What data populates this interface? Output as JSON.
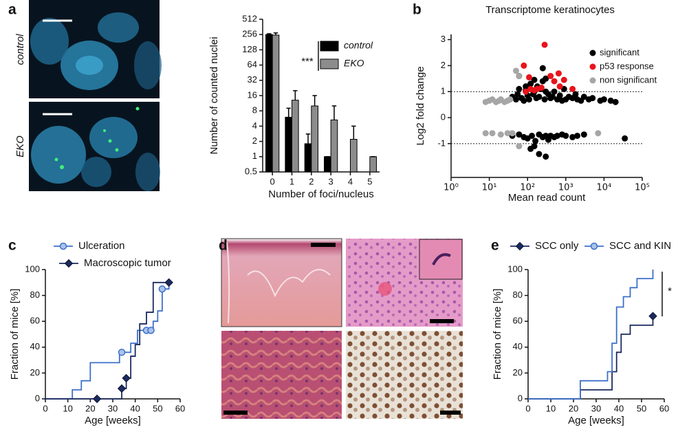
{
  "panels": [
    "a",
    "b",
    "c",
    "d",
    "e"
  ],
  "image_labels": [
    "control",
    "EKO"
  ],
  "chart_data": [
    {
      "type": "bar",
      "xlabel": "Number of foci/nucleus",
      "ylabel": "Number of counted nuclei",
      "categories": [
        "0",
        "1",
        "2",
        "3",
        "4",
        "5"
      ],
      "yscale": "log",
      "ylim": [
        0.5,
        512
      ],
      "yticks": [
        0.5,
        1,
        2,
        4,
        8,
        16,
        32,
        64,
        128,
        256,
        512
      ],
      "annotation": "***",
      "series": [
        {
          "name": "control",
          "color": "#000000",
          "values": [
            256,
            6,
            1.8,
            1,
            null,
            null
          ],
          "errors": [
            10,
            3,
            1,
            0,
            null,
            null
          ]
        },
        {
          "name": "EKO",
          "color": "#8c8c8c",
          "values": [
            250,
            13,
            10,
            5.3,
            2.2,
            1
          ],
          "errors": [
            25,
            7,
            6,
            4.7,
            1.8,
            0
          ]
        }
      ]
    },
    {
      "type": "scatter",
      "title": "Transcriptome keratinocytes",
      "xlabel": "Mean read count",
      "ylabel": "Log2 fold change",
      "xscale": "log",
      "xlim": [
        1,
        100000
      ],
      "xticks": [
        {
          "value": 1,
          "label": "10⁰"
        },
        {
          "value": 10,
          "label": "10¹"
        },
        {
          "value": 100,
          "label": "10²"
        },
        {
          "value": 1000,
          "label": "10³"
        },
        {
          "value": 10000,
          "label": "10⁴"
        },
        {
          "value": 100000,
          "label": "10⁵"
        }
      ],
      "ylim": [
        -2.3,
        3.2
      ],
      "yticks": [
        -1,
        0,
        1,
        2,
        3
      ],
      "hlines": [
        1,
        -1
      ],
      "series": [
        {
          "name": "significant",
          "color": "#000000",
          "x": [
            40,
            50,
            55,
            60,
            70,
            80,
            90,
            100,
            110,
            120,
            140,
            150,
            170,
            200,
            220,
            250,
            280,
            300,
            350,
            400,
            450,
            500,
            600,
            700,
            800,
            900,
            1000,
            1200,
            1500,
            1800,
            2000,
            2500,
            3000,
            4000,
            5000,
            8000,
            10000,
            15000,
            20000,
            60,
            120,
            180,
            250,
            300,
            150,
            90,
            40,
            60,
            80,
            100,
            130,
            160,
            200,
            250,
            300,
            350,
            400,
            500,
            600,
            800,
            1000,
            1500,
            2000,
            3000,
            35000,
            200,
            300,
            150,
            120
          ],
          "values": [
            0.8,
            0.7,
            0.9,
            1.1,
            0.75,
            0.65,
            1.2,
            0.85,
            0.7,
            1.3,
            0.9,
            1.0,
            0.75,
            0.8,
            1.1,
            1.4,
            0.7,
            1.5,
            0.9,
            0.75,
            0.8,
            1.0,
            0.7,
            0.85,
            0.65,
            1.1,
            0.7,
            0.8,
            0.75,
            0.9,
            0.7,
            0.65,
            0.8,
            0.7,
            0.75,
            0.65,
            0.7,
            0.65,
            0.6,
            1.6,
            1.3,
            1.2,
            1.9,
            1.0,
            1.45,
            1.05,
            -0.7,
            -0.65,
            -0.75,
            -0.8,
            -0.7,
            -0.9,
            -0.65,
            -0.75,
            -0.7,
            -0.85,
            -0.7,
            -0.75,
            -0.7,
            -0.65,
            -0.7,
            -0.75,
            -0.7,
            -0.65,
            -0.8,
            -1.4,
            -1.5,
            -1.1,
            -1.2
          ]
        },
        {
          "name": "p53 response",
          "color": "#e8141b",
          "x": [
            80,
            90,
            110,
            120,
            150,
            180,
            230,
            280,
            400,
            500,
            650,
            700,
            900,
            1500
          ],
          "values": [
            2.0,
            1.0,
            1.55,
            1.1,
            1.05,
            1.1,
            1.15,
            2.8,
            1.6,
            1.4,
            1.7,
            1.2,
            1.45,
            1.1
          ]
        },
        {
          "name": "non significant",
          "color": "#a6a6a6",
          "x": [
            8,
            10,
            12,
            15,
            18,
            20,
            25,
            30,
            35,
            8,
            12,
            20,
            30,
            40,
            50,
            60,
            7000,
            15,
            60
          ],
          "values": [
            0.6,
            0.65,
            0.7,
            0.6,
            0.65,
            0.7,
            0.6,
            0.65,
            0.7,
            -0.6,
            -0.6,
            -0.65,
            -0.6,
            -0.6,
            1.8,
            1.6,
            -0.6,
            0.6,
            -1.1
          ]
        }
      ]
    },
    {
      "type": "step",
      "xlabel": "Age [weeks]",
      "ylabel": "Fraction of mice [%]",
      "xlim": [
        0,
        60
      ],
      "xticks": [
        0,
        10,
        20,
        30,
        40,
        50,
        60
      ],
      "ylim": [
        0,
        100
      ],
      "yticks": [
        0,
        20,
        40,
        60,
        80,
        100
      ],
      "series": [
        {
          "name": "Ulceration",
          "color": "#3d6fc9",
          "marker": "circle",
          "x": [
            0,
            12,
            16,
            20,
            33,
            38,
            41,
            48,
            50,
            52,
            55
          ],
          "values": [
            0,
            7,
            14,
            28,
            36,
            43,
            53,
            60,
            68,
            85,
            90
          ],
          "censor_x": [
            34,
            45,
            47,
            52
          ],
          "censor_values": [
            36,
            53,
            53,
            85
          ]
        },
        {
          "name": "Macroscopic tumor",
          "color": "#1b2a5e",
          "marker": "diamond",
          "x": [
            0,
            34,
            36,
            38,
            40,
            42,
            45,
            48,
            55
          ],
          "values": [
            0,
            8,
            16,
            33,
            42,
            58,
            67,
            90,
            90
          ],
          "censor_x": [
            23,
            34,
            36,
            55
          ],
          "censor_values": [
            0,
            8,
            16,
            90
          ]
        }
      ]
    },
    {
      "type": "step",
      "xlabel": "Age [weeks]",
      "ylabel": "Fraction of mice [%]",
      "xlim": [
        0,
        60
      ],
      "xticks": [
        0,
        10,
        20,
        30,
        40,
        50,
        60
      ],
      "ylim": [
        0,
        100
      ],
      "yticks": [
        0,
        20,
        40,
        60,
        80,
        100
      ],
      "annotation": "*",
      "series": [
        {
          "name": "SCC only",
          "color": "#1b2a5e",
          "marker": "diamond",
          "x": [
            0,
            23,
            37,
            39,
            41,
            45,
            48,
            55
          ],
          "values": [
            0,
            7,
            21,
            36,
            50,
            57,
            57,
            64
          ],
          "censor_x": [
            55
          ],
          "censor_values": [
            64
          ]
        },
        {
          "name": "SCC and KIN",
          "color": "#3d6fc9",
          "marker": "circle",
          "x": [
            0,
            23,
            35,
            37,
            39,
            42,
            45,
            48,
            55
          ],
          "values": [
            0,
            14,
            21,
            43,
            71,
            79,
            86,
            93,
            100
          ],
          "censor_x": [],
          "censor_values": []
        }
      ]
    }
  ]
}
